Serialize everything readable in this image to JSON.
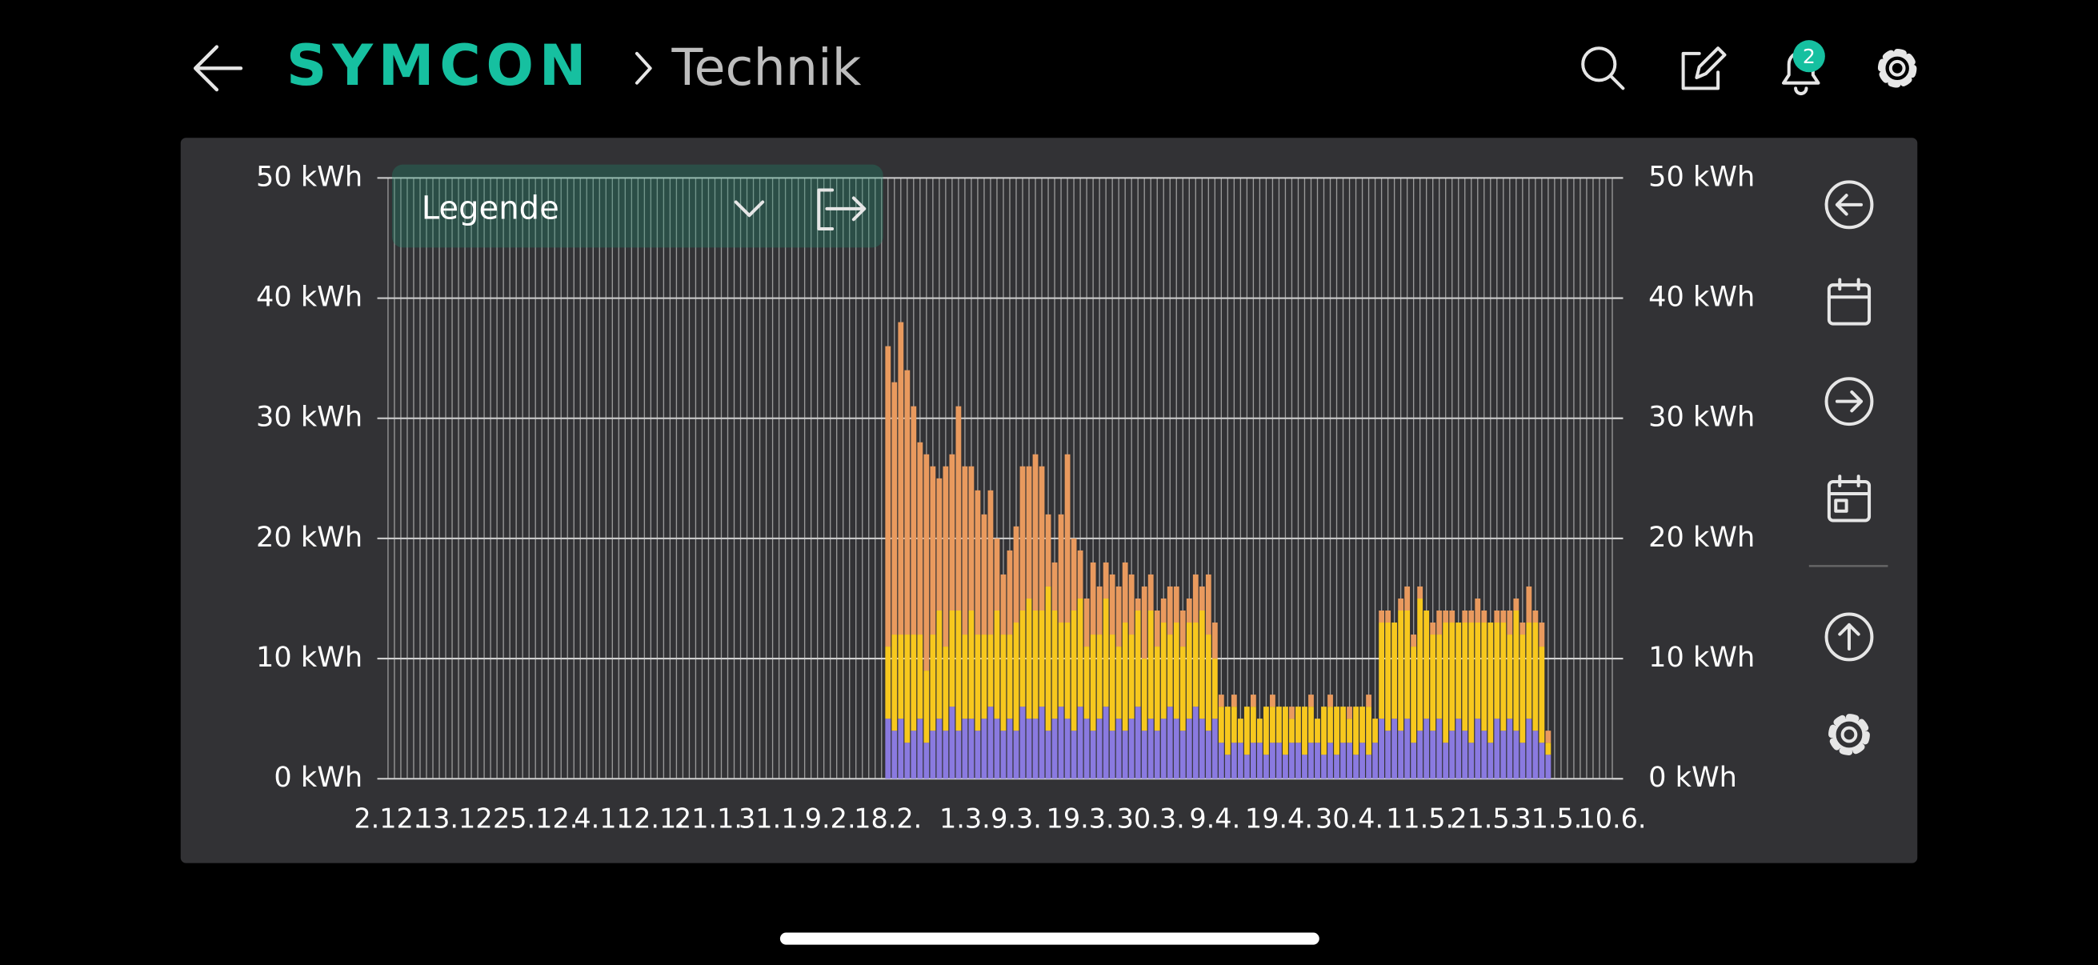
{
  "header": {
    "logo": "SYMCON",
    "breadcrumb": "Technik",
    "notification_count": 2
  },
  "legend_button": "Legende",
  "chart_data": {
    "type": "stacked-bar",
    "categories": [
      "2.12.",
      null,
      null,
      null,
      null,
      null,
      null,
      null,
      null,
      null,
      null,
      "13.12.",
      null,
      null,
      null,
      null,
      null,
      null,
      null,
      null,
      null,
      null,
      null,
      "25.12.",
      null,
      null,
      null,
      null,
      null,
      null,
      null,
      null,
      null,
      "4.1.",
      null,
      null,
      null,
      null,
      null,
      null,
      null,
      "12.1.",
      null,
      null,
      null,
      null,
      null,
      null,
      null,
      null,
      "21.1.",
      null,
      null,
      null,
      null,
      null,
      null,
      null,
      null,
      null,
      "31.1.",
      null,
      null,
      null,
      null,
      null,
      null,
      null,
      null,
      "9.2.",
      null,
      null,
      null,
      null,
      null,
      null,
      null,
      null,
      "18.2.",
      null,
      null,
      null,
      null,
      null,
      null,
      null,
      null,
      null,
      null,
      null,
      "1.3.",
      null,
      null,
      null,
      null,
      null,
      null,
      null,
      "9.3.",
      null,
      null,
      null,
      null,
      null,
      null,
      null,
      null,
      null,
      "19.3.",
      null,
      null,
      null,
      null,
      null,
      null,
      null,
      null,
      null,
      null,
      "30.3.",
      null,
      null,
      null,
      null,
      null,
      null,
      null,
      null,
      null,
      "9.4.",
      null,
      null,
      null,
      null,
      null,
      null,
      null,
      null,
      null,
      "19.4.",
      null,
      null,
      null,
      null,
      null,
      null,
      null,
      null,
      null,
      null,
      "30.4.",
      null,
      null,
      null,
      null,
      null,
      null,
      null,
      null,
      null,
      null,
      "11.5.",
      null,
      null,
      null,
      null,
      null,
      null,
      null,
      null,
      null,
      "21.5.",
      null,
      null,
      null,
      null,
      null,
      null,
      null,
      null,
      null,
      "31.5.",
      null,
      null,
      null,
      null,
      null,
      null,
      null,
      null,
      null,
      "10.6."
    ],
    "series": [
      {
        "color": "#8a7ae0",
        "values": [
          null,
          null,
          null,
          null,
          null,
          null,
          null,
          null,
          null,
          null,
          null,
          null,
          null,
          null,
          null,
          null,
          null,
          null,
          null,
          null,
          null,
          null,
          null,
          null,
          null,
          null,
          null,
          null,
          null,
          null,
          null,
          null,
          null,
          null,
          null,
          null,
          null,
          null,
          null,
          null,
          null,
          null,
          null,
          null,
          null,
          null,
          null,
          null,
          null,
          null,
          null,
          null,
          null,
          null,
          null,
          null,
          null,
          null,
          null,
          null,
          null,
          null,
          null,
          null,
          null,
          null,
          null,
          null,
          null,
          null,
          null,
          null,
          null,
          null,
          null,
          null,
          null,
          null,
          5,
          4,
          5,
          3,
          4,
          5,
          3,
          4,
          5,
          4,
          6,
          4,
          5,
          5,
          4,
          5,
          6,
          5,
          4,
          5,
          4,
          6,
          5,
          5,
          6,
          4,
          5,
          6,
          5,
          4,
          6,
          5,
          4,
          5,
          6,
          4,
          5,
          4,
          5,
          6,
          4,
          5,
          4,
          5,
          6,
          5,
          4,
          5,
          6,
          5,
          4,
          5,
          3,
          2,
          3,
          3,
          2,
          3,
          3,
          2,
          3,
          3,
          2,
          3,
          3,
          2,
          3,
          3,
          2,
          3,
          2,
          3,
          3,
          2,
          3,
          2,
          3,
          5,
          4,
          5,
          4,
          5,
          3,
          4,
          5,
          4,
          5,
          3,
          4,
          5,
          4,
          3,
          5,
          4,
          3,
          5,
          4,
          5,
          4,
          3,
          5,
          4,
          3,
          2,
          null,
          null,
          null,
          null,
          null,
          null,
          null,
          null,
          null,
          null
        ]
      },
      {
        "color": "#f7c81e",
        "values": [
          null,
          null,
          null,
          null,
          null,
          null,
          null,
          null,
          null,
          null,
          null,
          null,
          null,
          null,
          null,
          null,
          null,
          null,
          null,
          null,
          null,
          null,
          null,
          null,
          null,
          null,
          null,
          null,
          null,
          null,
          null,
          null,
          null,
          null,
          null,
          null,
          null,
          null,
          null,
          null,
          null,
          null,
          null,
          null,
          null,
          null,
          null,
          null,
          null,
          null,
          null,
          null,
          null,
          null,
          null,
          null,
          null,
          null,
          null,
          null,
          null,
          null,
          null,
          null,
          null,
          null,
          null,
          null,
          null,
          null,
          null,
          null,
          null,
          null,
          null,
          null,
          null,
          null,
          6,
          8,
          7,
          9,
          8,
          7,
          6,
          8,
          9,
          7,
          8,
          10,
          7,
          9,
          8,
          7,
          6,
          9,
          8,
          7,
          9,
          8,
          10,
          9,
          8,
          12,
          9,
          7,
          8,
          10,
          9,
          6,
          8,
          7,
          9,
          8,
          6,
          9,
          7,
          8,
          6,
          9,
          7,
          8,
          6,
          8,
          7,
          8,
          7,
          9,
          8,
          5,
          3,
          4,
          3,
          2,
          4,
          3,
          2,
          4,
          3,
          3,
          4,
          2,
          3,
          4,
          3,
          2,
          4,
          3,
          4,
          3,
          2,
          4,
          3,
          4,
          2,
          8,
          9,
          8,
          10,
          9,
          8,
          11,
          9,
          8,
          7,
          10,
          9,
          8,
          9,
          10,
          8,
          9,
          10,
          8,
          9,
          7,
          10,
          9,
          8,
          9,
          8,
          1,
          null,
          null,
          null,
          null,
          null,
          null,
          null,
          null,
          null,
          null
        ]
      },
      {
        "color": "#e99a5e",
        "values": [
          null,
          null,
          null,
          null,
          null,
          null,
          null,
          null,
          null,
          null,
          null,
          null,
          null,
          null,
          null,
          null,
          null,
          null,
          null,
          null,
          null,
          null,
          null,
          null,
          null,
          null,
          null,
          null,
          null,
          null,
          null,
          null,
          null,
          null,
          null,
          null,
          null,
          null,
          null,
          null,
          null,
          null,
          null,
          null,
          null,
          null,
          null,
          null,
          null,
          null,
          null,
          null,
          null,
          null,
          null,
          null,
          null,
          null,
          null,
          null,
          null,
          null,
          null,
          null,
          null,
          null,
          null,
          null,
          null,
          null,
          null,
          null,
          null,
          null,
          null,
          null,
          null,
          null,
          25,
          21,
          26,
          22,
          19,
          16,
          18,
          14,
          11,
          15,
          13,
          17,
          14,
          12,
          12,
          10,
          12,
          6,
          5,
          7,
          8,
          12,
          11,
          13,
          12,
          6,
          4,
          9,
          14,
          6,
          4,
          4,
          6,
          4,
          3,
          5,
          5,
          5,
          5,
          1,
          6,
          3,
          3,
          2,
          4,
          3,
          3,
          2,
          4,
          2,
          5,
          3,
          1,
          0,
          1,
          0,
          0,
          1,
          0,
          0,
          1,
          0,
          0,
          1,
          0,
          0,
          1,
          0,
          0,
          1,
          0,
          0,
          1,
          0,
          0,
          1,
          0,
          1,
          1,
          0,
          1,
          2,
          1,
          1,
          0,
          1,
          2,
          1,
          1,
          0,
          1,
          1,
          2,
          1,
          0,
          1,
          1,
          2,
          1,
          1,
          3,
          1,
          2,
          1,
          null,
          null,
          null,
          null,
          null,
          null,
          null,
          null,
          null,
          null
        ]
      }
    ],
    "ylim": [
      0,
      50
    ],
    "yticks": [
      {
        "value": 0,
        "label": "0 kWh"
      },
      {
        "value": 10,
        "label": "10 kWh"
      },
      {
        "value": 20,
        "label": "20 kWh"
      },
      {
        "value": 30,
        "label": "30 kWh"
      },
      {
        "value": 40,
        "label": "40 kWh"
      },
      {
        "value": 50,
        "label": "50 kWh"
      }
    ],
    "y2lim": [
      0,
      50
    ],
    "y2ticks": [
      {
        "value": 0,
        "label": "0 kWh"
      },
      {
        "value": 10,
        "label": "10 kWh"
      },
      {
        "value": 20,
        "label": "20 kWh"
      },
      {
        "value": 30,
        "label": "30 kWh"
      },
      {
        "value": 40,
        "label": "40 kWh"
      },
      {
        "value": 50,
        "label": "50 kWh"
      }
    ],
    "grid": true
  }
}
